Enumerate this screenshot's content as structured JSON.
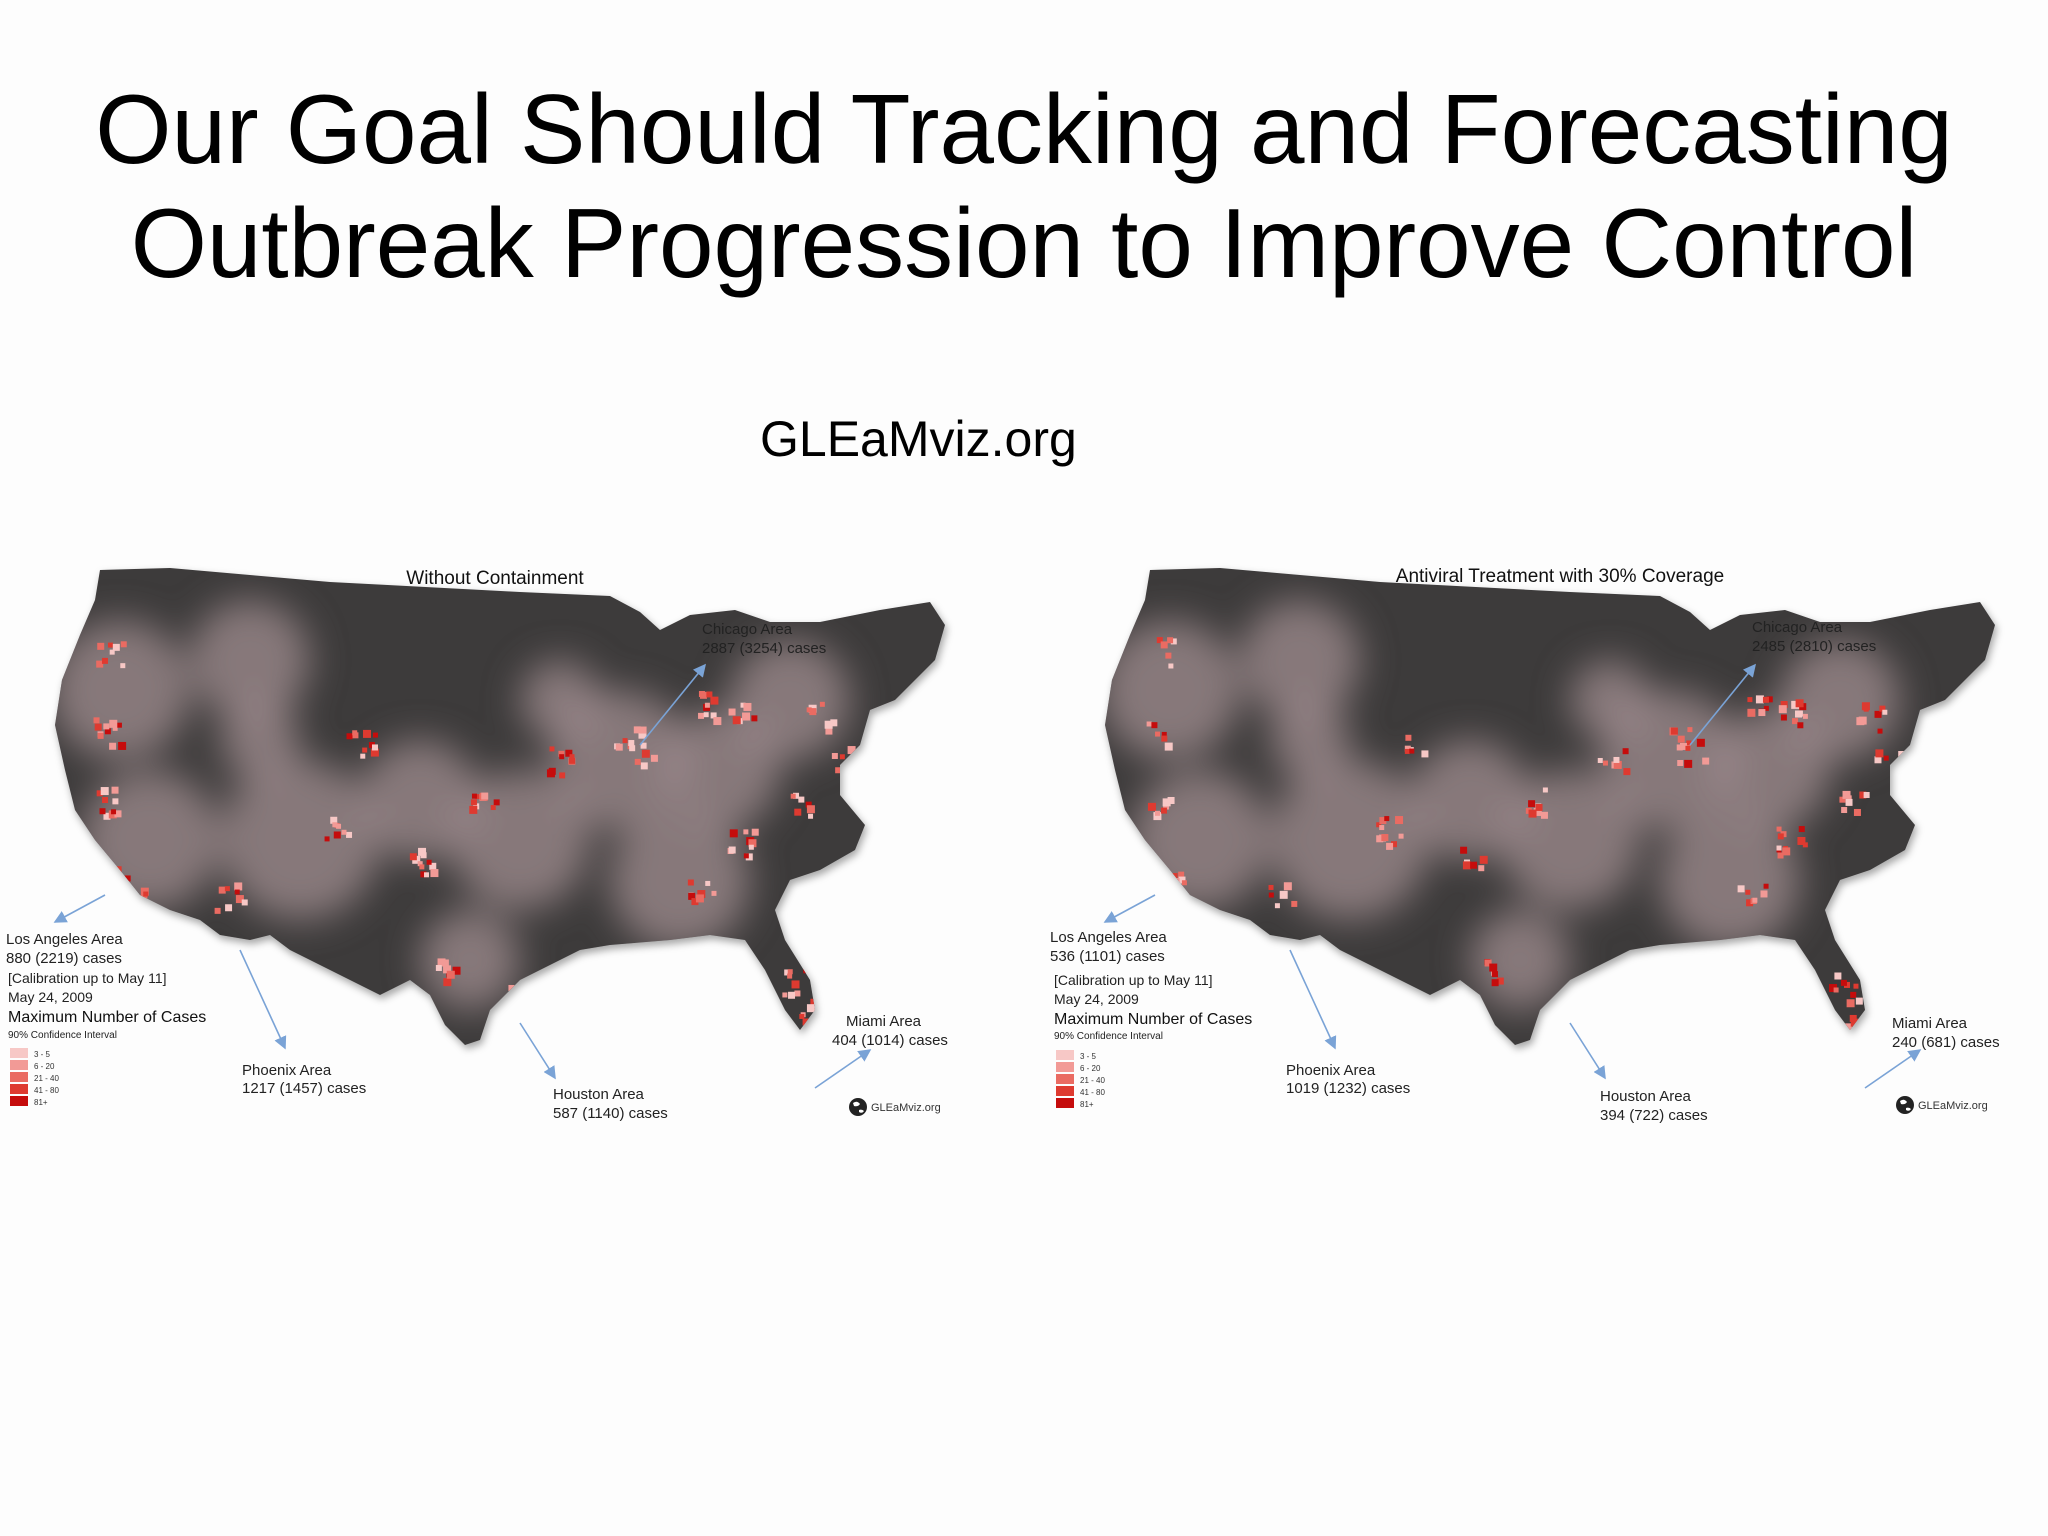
{
  "slide": {
    "title_line1": "Our Goal Should Tracking and Forecasting",
    "title_line2": "Outbreak Progression to Improve Control",
    "site": "GLEaMviz.org"
  },
  "colors": {
    "background": "#fdfdfd",
    "land_dark": "#3c3a3b",
    "land_mid": "#6e6365",
    "land_light": "#a08e90",
    "legend": [
      "#f7c8c6",
      "#f29a96",
      "#ea6b62",
      "#de3a30",
      "#c50c0c"
    ],
    "arrow": "#7aa3d6"
  },
  "maps": [
    {
      "title": "Without Containment",
      "areas": {
        "chicago": {
          "name": "Chicago Area",
          "cases": "2887 (3254) cases"
        },
        "los_angeles": {
          "name": "Los Angeles Area",
          "cases": "880 (2219) cases"
        },
        "phoenix": {
          "name": "Phoenix Area",
          "cases": "1217 (1457) cases"
        },
        "houston": {
          "name": "Houston Area",
          "cases": "587 (1140) cases"
        },
        "miami": {
          "name": "Miami Area",
          "cases": "404 (1014) cases"
        }
      }
    },
    {
      "title": "Antiviral Treatment with 30% Coverage",
      "areas": {
        "chicago": {
          "name": "Chicago Area",
          "cases": "2485 (2810) cases"
        },
        "los_angeles": {
          "name": "Los Angeles Area",
          "cases": "536 (1101) cases"
        },
        "phoenix": {
          "name": "Phoenix Area",
          "cases": "1019 (1232) cases"
        },
        "houston": {
          "name": "Houston Area",
          "cases": "394 (722) cases"
        },
        "miami": {
          "name": "Miami Area",
          "cases": "240 (681) cases"
        }
      }
    }
  ],
  "legend": {
    "calibration": "[Calibration up to May 11]",
    "date": "May 24, 2009",
    "title": "Maximum Number of Cases",
    "subtitle": "90% Confidence Interval",
    "items": [
      "3 - 5",
      "6 - 20",
      "21 - 40",
      "41 - 80",
      "81+"
    ]
  },
  "logo_text": "GLEaMviz.org"
}
